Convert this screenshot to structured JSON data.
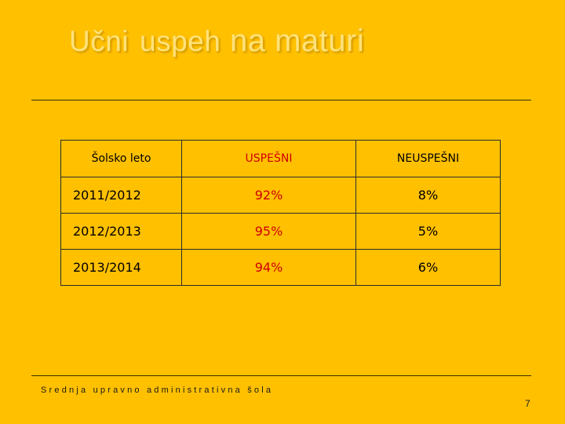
{
  "slide": {
    "title_part1": "Učni",
    "title_part2": "uspeh",
    "title_part3": "na maturi",
    "footer": "Srednja upravno administrativna šola",
    "page_number": "7"
  },
  "table": {
    "headers": [
      "Šolsko leto",
      "USPEŠNI",
      "NEUSPEŠNI"
    ],
    "rows": [
      {
        "year": "2011/2012",
        "passed": "92%",
        "failed": "8%"
      },
      {
        "year": "2012/2013",
        "passed": "95%",
        "failed": "5%"
      },
      {
        "year": "2013/2014",
        "passed": "94%",
        "failed": "6%"
      }
    ]
  },
  "colors": {
    "background": "#FFC000",
    "title": "#FFE27A",
    "accent_red": "#D00000"
  }
}
